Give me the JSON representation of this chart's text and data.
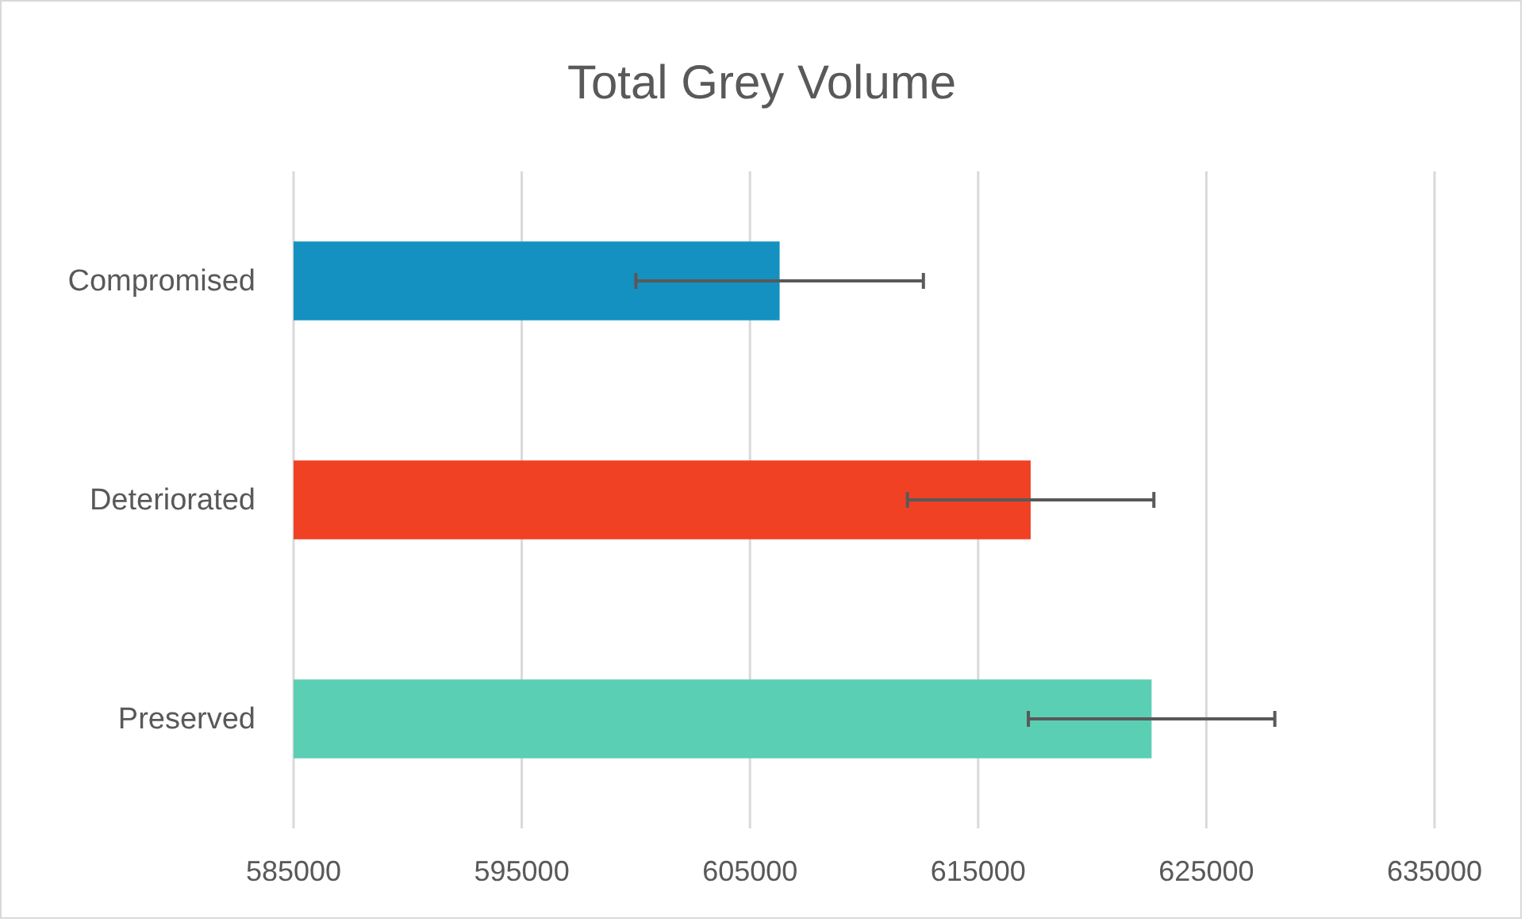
{
  "chart_data": {
    "type": "bar",
    "orientation": "horizontal",
    "title": "Total Grey Volume",
    "categories": [
      "Compromised",
      "Deteriorated",
      "Preserved"
    ],
    "values": [
      606300,
      617300,
      622600
    ],
    "colors": [
      "#1491c0",
      "#f04124",
      "#5bcfb3"
    ],
    "errors": [
      6300,
      5400,
      5400
    ],
    "xlim": [
      585000,
      635000
    ],
    "xticks": [
      585000,
      595000,
      605000,
      615000,
      625000,
      635000
    ],
    "grid": "x"
  }
}
